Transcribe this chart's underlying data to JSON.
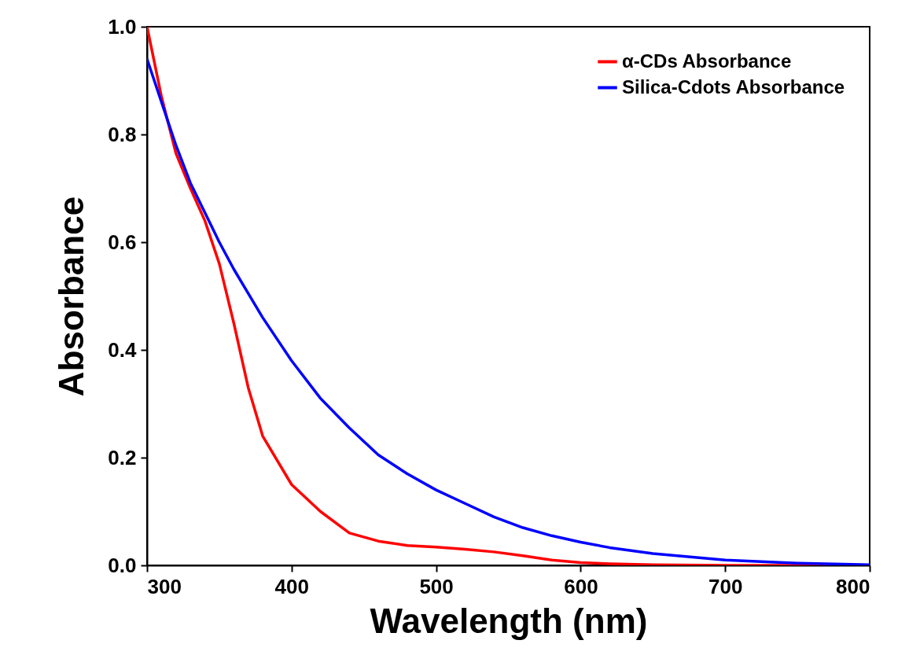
{
  "chart_data": {
    "type": "line",
    "xlabel": "Wavelength (nm)",
    "ylabel": "Absorbance",
    "xlim": [
      300,
      800
    ],
    "xticks": [
      300,
      400,
      500,
      600,
      700,
      800
    ],
    "ylim": [
      0,
      1.0
    ],
    "yticks": [
      {
        "value": 0,
        "label": "0.0"
      },
      0.2,
      0.4,
      0.6,
      0.8,
      {
        "value": 1,
        "label": "1.0"
      }
    ],
    "x": [
      300,
      310,
      320,
      330,
      340,
      350,
      360,
      370,
      380,
      400,
      420,
      440,
      460,
      480,
      500,
      520,
      540,
      560,
      580,
      600,
      620,
      650,
      700,
      750,
      800
    ],
    "series": [
      {
        "name": "α-CDs Absorbance",
        "color": "#ff0000",
        "values": [
          1.0,
          0.87,
          0.765,
          0.7,
          0.64,
          0.56,
          0.45,
          0.33,
          0.24,
          0.15,
          0.1,
          0.06,
          0.045,
          0.037,
          0.034,
          0.03,
          0.025,
          0.018,
          0.01,
          0.005,
          0.003,
          0.001,
          0.0,
          0.0,
          0.0
        ]
      },
      {
        "name": "Silica-Cdots Absorbance",
        "color": "#0000ff",
        "values": [
          0.94,
          0.86,
          0.78,
          0.71,
          0.655,
          0.6,
          0.55,
          0.505,
          0.46,
          0.38,
          0.31,
          0.255,
          0.205,
          0.17,
          0.14,
          0.115,
          0.09,
          0.07,
          0.055,
          0.043,
          0.033,
          0.022,
          0.01,
          0.004,
          0.001
        ]
      }
    ],
    "legend": "top right"
  }
}
